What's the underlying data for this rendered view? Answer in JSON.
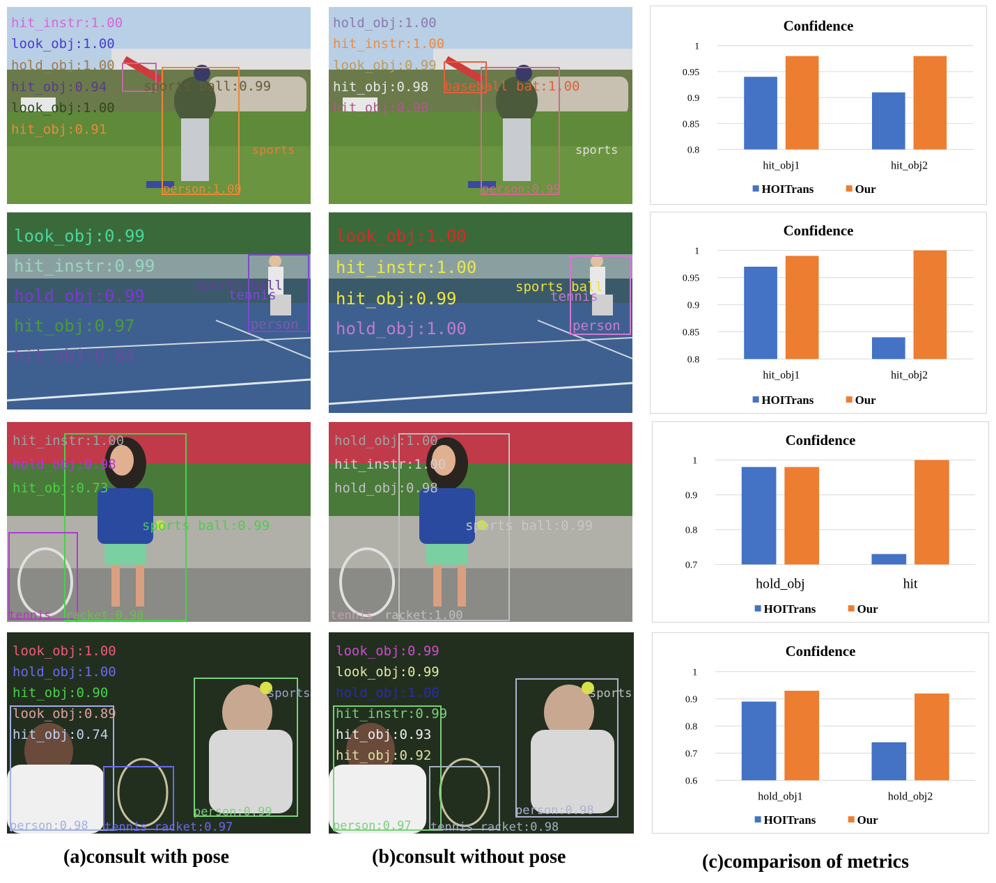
{
  "captions": {
    "a": "(a)consult with pose",
    "b": "(b)consult without pose",
    "c": "(c)comparison of metrics"
  },
  "images": [
    {
      "with_pose": [
        {
          "text": "hit_instr:1.00",
          "color": "#d36ad6"
        },
        {
          "text": "look_obj:1.00",
          "color": "#4a3ad0"
        },
        {
          "text": "hold_obj:1.00",
          "color": "#a07a4a"
        },
        {
          "text": "hit_obj:0.94",
          "color": "#5a3a8a"
        },
        {
          "text": "look_obj:1.00",
          "color": "#2a4a1a"
        },
        {
          "text": "hit_obj:0.91",
          "color": "#e88a3a"
        },
        {
          "text": "sports ball:0.99",
          "color": "#6a5a3a"
        },
        {
          "text": "sports",
          "color": "#f07a3a"
        },
        {
          "text": "person:1.00",
          "color": "#e88a3a"
        }
      ],
      "without_pose": [
        {
          "text": "hold_obj:1.00",
          "color": "#8a7ab0"
        },
        {
          "text": "hit_instr:1.00",
          "color": "#f08a3a"
        },
        {
          "text": "look_obj:0.99",
          "color": "#c09a5a"
        },
        {
          "text": "hit_obj:0.98",
          "color": "#e8e8e8"
        },
        {
          "text": "hit_obj:0.98",
          "color": "#b05a8a"
        },
        {
          "text": "baseball bat:1.00",
          "color": "#e0603a"
        },
        {
          "text": "sports",
          "color": "#e0e0e0"
        },
        {
          "text": "person:0.99",
          "color": "#d06a8a"
        }
      ]
    },
    {
      "with_pose": [
        {
          "text": "look_obj:0.99",
          "color": "#4ad6a0"
        },
        {
          "text": "hit_instr:0.99",
          "color": "#9ad6c0"
        },
        {
          "text": "hold_obj:0.99",
          "color": "#7a3ad0"
        },
        {
          "text": "hit_obj:0.97",
          "color": "#4a9a3a"
        },
        {
          "text": "hit_obj:0.84",
          "color": "#6a4aa0"
        },
        {
          "text": "sports ball",
          "color": "#6a3aa0"
        },
        {
          "text": "tennis",
          "color": "#7a4ad0"
        },
        {
          "text": "person",
          "color": "#7a5ab0"
        }
      ],
      "without_pose": [
        {
          "text": "look_obj:1.00",
          "color": "#d82a2a"
        },
        {
          "text": "hit_instr:1.00",
          "color": "#e8e84a"
        },
        {
          "text": "hit_obj:0.99",
          "color": "#f0e83a"
        },
        {
          "text": "hold_obj:1.00",
          "color": "#c07ad0"
        },
        {
          "text": "sports ball",
          "color": "#f0e03a"
        },
        {
          "text": "tennis",
          "color": "#c07ad0"
        },
        {
          "text": "person",
          "color": "#d07ad0"
        }
      ]
    },
    {
      "with_pose": [
        {
          "text": "hit_instr:1.00",
          "color": "#a0a0a0"
        },
        {
          "text": "hold_obj:0.98",
          "color": "#b03ad0"
        },
        {
          "text": "hit_obj:0.73",
          "color": "#4ad04a"
        },
        {
          "text": "sports ball:0.99",
          "color": "#4ad04a"
        },
        {
          "text": "tennis",
          "color": "#b03ab0"
        },
        {
          "text": "racket:0.98",
          "color": "#6ac04a"
        }
      ],
      "without_pose": [
        {
          "text": "hold_obj:1.00",
          "color": "#a0a0a0"
        },
        {
          "text": "hit_instr:1.00",
          "color": "#d0d0d0"
        },
        {
          "text": "hold_obj:0.98",
          "color": "#c0c0c0"
        },
        {
          "text": "sports ball:0.99",
          "color": "#c8c8c8"
        },
        {
          "text": "tennis",
          "color": "#c0a0b0"
        },
        {
          "text": "racket:1.00",
          "color": "#c0c0c0"
        }
      ]
    },
    {
      "with_pose": [
        {
          "text": "look_obj:1.00",
          "color": "#f05a7a"
        },
        {
          "text": "hold_obj:1.00",
          "color": "#6a6af0"
        },
        {
          "text": "hit_obj:0.90",
          "color": "#4ad04a"
        },
        {
          "text": "look_obj:0.89",
          "color": "#e0a0a0"
        },
        {
          "text": "hit_obj:0.74",
          "color": "#c0d0f0"
        },
        {
          "text": "sports",
          "color": "#a0a0d0"
        },
        {
          "text": "person:0.99",
          "color": "#7ad07a"
        },
        {
          "text": "person:0.98",
          "color": "#a0b0e0"
        },
        {
          "text": "tennis racket:0.97",
          "color": "#6a6af0"
        }
      ],
      "without_pose": [
        {
          "text": "look_obj:0.99",
          "color": "#d04ad0"
        },
        {
          "text": "look_obj:0.99",
          "color": "#e0e8a0"
        },
        {
          "text": "hold_obj:1.00",
          "color": "#2a2ab0"
        },
        {
          "text": "hit_instr:0.99",
          "color": "#7ad07a"
        },
        {
          "text": "hit_obj:0.93",
          "color": "#f0f0f0"
        },
        {
          "text": "hit_obj:0.92",
          "color": "#e0e0a0"
        },
        {
          "text": "sports",
          "color": "#c0c0c0"
        },
        {
          "text": "person:0.98",
          "color": "#b0b0d0"
        },
        {
          "text": "person:0.97",
          "color": "#7ad07a"
        },
        {
          "text": "tennis racket:0.98",
          "color": "#a0b0c0"
        }
      ]
    }
  ],
  "chart_data": [
    {
      "type": "bar",
      "title": "Confidence",
      "categories": [
        "hit_obj1",
        "hit_obj2"
      ],
      "series": [
        {
          "name": "HOITrans",
          "color": "#4472c4",
          "values": [
            0.94,
            0.91
          ]
        },
        {
          "name": "Our",
          "color": "#ed7d31",
          "values": [
            0.98,
            0.98
          ]
        }
      ],
      "ylim": [
        0.8,
        1
      ],
      "yticks": [
        "0.8",
        "0.85",
        "0.9",
        "0.95",
        "1"
      ],
      "legend": "bottom"
    },
    {
      "type": "bar",
      "title": "Confidence",
      "categories": [
        "hit_obj1",
        "hit_obj2"
      ],
      "series": [
        {
          "name": "HOITrans",
          "color": "#4472c4",
          "values": [
            0.97,
            0.84
          ]
        },
        {
          "name": "Our",
          "color": "#ed7d31",
          "values": [
            0.99,
            1.0
          ]
        }
      ],
      "ylim": [
        0.8,
        1
      ],
      "yticks": [
        "0.8",
        "0.85",
        "0.9",
        "0.95",
        "1"
      ],
      "legend": "bottom"
    },
    {
      "type": "bar",
      "title": "Confidence",
      "categories": [
        "hold_obj",
        "hit"
      ],
      "series": [
        {
          "name": "HOITrans",
          "color": "#4472c4",
          "values": [
            0.98,
            0.73
          ]
        },
        {
          "name": "Our",
          "color": "#ed7d31",
          "values": [
            0.98,
            1.0
          ]
        }
      ],
      "ylim": [
        0.7,
        1
      ],
      "yticks": [
        "0.7",
        "0.8",
        "0.9",
        "1"
      ],
      "legend": "bottom"
    },
    {
      "type": "bar",
      "title": "Confidence",
      "categories": [
        "hold_obj1",
        "hold_obj2"
      ],
      "series": [
        {
          "name": "HOITrans",
          "color": "#4472c4",
          "values": [
            0.89,
            0.74
          ]
        },
        {
          "name": "Our",
          "color": "#ed7d31",
          "values": [
            0.93,
            0.92
          ]
        }
      ],
      "ylim": [
        0.6,
        1
      ],
      "yticks": [
        "0.6",
        "0.7",
        "0.8",
        "0.9",
        "1"
      ],
      "legend": "bottom"
    }
  ]
}
